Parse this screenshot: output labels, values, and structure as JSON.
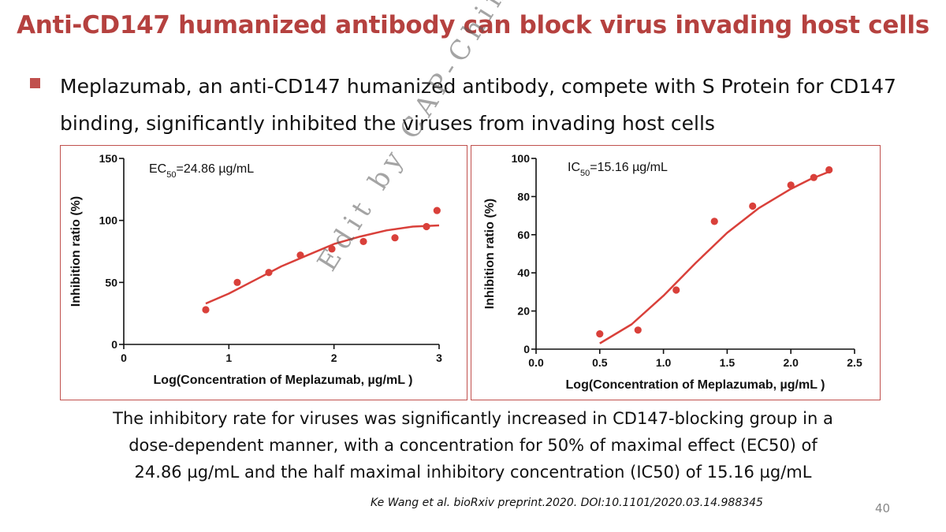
{
  "title": "Anti-CD147 humanized antibody can block virus invading host cells",
  "bullet": "Meplazumab, an anti-CD147 humanized antibody, compete with S Protein for CD147 binding, significantly inhibited the viruses from invading host cells",
  "caption_lines": [
    "The inhibitory rate for viruses was significantly increased in CD147-blocking group in a",
    "dose-dependent manner, with a concentration for 50% of maximal effect (EC50) of",
    "24.86 µg/mL and the half maximal inhibitory concentration (IC50) of 15.16 µg/mL"
  ],
  "citation": "Ke Wang et al. bioRxiv preprint.2020. DOI:10.1101/2020.03.14.988345",
  "page_number": "40",
  "watermark": "Edit by CAP-China",
  "colors": {
    "accent": "#c0504d",
    "title": "#b5413f",
    "data": "#d9403a"
  },
  "chart_data": [
    {
      "type": "scatter",
      "annotation_prefix": "EC",
      "annotation_sub": "50",
      "annotation_value": "=24.86 µg/mL",
      "xlabel": "Log(Concentration of Meplazumab, µg/mL )",
      "ylabel": "Inhibition ratio (%)",
      "xlim": [
        0,
        3
      ],
      "ylim": [
        0,
        150
      ],
      "xticks": [
        "0",
        "1",
        "2",
        "3"
      ],
      "xtick_values": [
        0,
        1,
        2,
        3
      ],
      "yticks": [
        "0",
        "50",
        "100",
        "150"
      ],
      "ytick_values": [
        0,
        50,
        100,
        150
      ],
      "points": [
        [
          0.78,
          28
        ],
        [
          1.08,
          50
        ],
        [
          1.38,
          58
        ],
        [
          1.68,
          72
        ],
        [
          1.98,
          77
        ],
        [
          2.28,
          83
        ],
        [
          2.58,
          86
        ],
        [
          2.88,
          95
        ],
        [
          2.98,
          108
        ]
      ],
      "curve": [
        [
          0.78,
          33
        ],
        [
          1.0,
          41
        ],
        [
          1.25,
          52
        ],
        [
          1.5,
          63
        ],
        [
          1.75,
          72
        ],
        [
          2.0,
          81
        ],
        [
          2.25,
          87
        ],
        [
          2.5,
          92
        ],
        [
          2.75,
          95
        ],
        [
          3.0,
          96
        ]
      ]
    },
    {
      "type": "scatter",
      "annotation_prefix": "IC",
      "annotation_sub": "50",
      "annotation_value": "=15.16 µg/mL",
      "xlabel": "Log(Concentration of Meplazumab, µg/mL )",
      "ylabel": "Inhibition ratio (%)",
      "xlim": [
        0,
        2.5
      ],
      "ylim": [
        0,
        100
      ],
      "xticks": [
        "0.0",
        "0.5",
        "1.0",
        "1.5",
        "2.0",
        "2.5"
      ],
      "xtick_values": [
        0,
        0.5,
        1.0,
        1.5,
        2.0,
        2.5
      ],
      "yticks": [
        "0",
        "20",
        "40",
        "60",
        "80",
        "100"
      ],
      "ytick_values": [
        0,
        20,
        40,
        60,
        80,
        100
      ],
      "points": [
        [
          0.5,
          8
        ],
        [
          0.8,
          10
        ],
        [
          1.1,
          31
        ],
        [
          1.4,
          67
        ],
        [
          1.7,
          75
        ],
        [
          2.0,
          86
        ],
        [
          2.18,
          90
        ],
        [
          2.3,
          94
        ]
      ],
      "curve": [
        [
          0.5,
          3
        ],
        [
          0.75,
          13
        ],
        [
          1.0,
          28
        ],
        [
          1.25,
          45
        ],
        [
          1.5,
          61
        ],
        [
          1.75,
          74
        ],
        [
          2.0,
          84
        ],
        [
          2.15,
          89
        ],
        [
          2.3,
          93
        ]
      ]
    }
  ]
}
